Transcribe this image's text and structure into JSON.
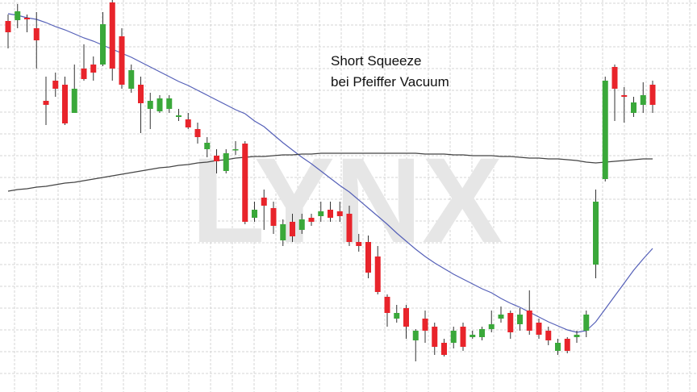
{
  "chart_data": {
    "type": "candlestick",
    "watermark": "LYNX",
    "annotation": [
      "Short Squeeze",
      "bei Pfeiffer Vacuum"
    ],
    "ylim": [
      0,
      486
    ],
    "grid": true,
    "up_color": "#3aa83a",
    "down_color": "#e8242b",
    "open": [
      460,
      461,
      464,
      451,
      361,
      386,
      381,
      346,
      401,
      406,
      406,
      483,
      441,
      376,
      381,
      351,
      348,
      351,
      341,
      338,
      326,
      301,
      293,
      274,
      301,
      308,
      216,
      241,
      228,
      188,
      211,
      201,
      216,
      218,
      226,
      224,
      221,
      186,
      186,
      168,
      118,
      91,
      104,
      64,
      91,
      81,
      61,
      61,
      81,
      68,
      68,
      78,
      91,
      98,
      84,
      101,
      86,
      76,
      51,
      66,
      68,
      76,
      158,
      264,
      403,
      368,
      346,
      356,
      381
    ],
    "high": [
      468,
      481,
      468,
      471,
      391,
      396,
      391,
      406,
      431,
      416,
      471,
      486,
      451,
      406,
      391,
      371,
      368,
      368,
      351,
      346,
      334,
      316,
      301,
      301,
      311,
      311,
      236,
      251,
      236,
      214,
      221,
      221,
      221,
      236,
      236,
      236,
      231,
      196,
      194,
      181,
      121,
      108,
      108,
      78,
      101,
      86,
      66,
      81,
      86,
      76,
      81,
      101,
      106,
      101,
      104,
      126,
      91,
      81,
      66,
      68,
      76,
      101,
      251,
      391,
      406,
      378,
      366,
      384,
      386
    ],
    "low": [
      426,
      451,
      446,
      401,
      331,
      366,
      331,
      346,
      386,
      386,
      404,
      386,
      376,
      371,
      321,
      326,
      346,
      346,
      336,
      326,
      308,
      291,
      271,
      271,
      294,
      208,
      211,
      201,
      196,
      181,
      186,
      196,
      206,
      211,
      211,
      211,
      181,
      174,
      141,
      121,
      81,
      86,
      66,
      38,
      61,
      46,
      44,
      54,
      51,
      66,
      64,
      74,
      86,
      66,
      76,
      71,
      66,
      58,
      46,
      48,
      61,
      68,
      141,
      261,
      336,
      334,
      341,
      346,
      346
    ],
    "close": [
      446,
      472,
      462,
      436,
      356,
      376,
      333,
      376,
      388,
      396,
      456,
      401,
      381,
      399,
      358,
      361,
      364,
      364,
      343,
      328,
      316,
      309,
      286,
      296,
      301,
      211,
      226,
      231,
      206,
      208,
      193,
      214,
      211,
      224,
      216,
      218,
      186,
      181,
      148,
      124,
      98,
      98,
      81,
      76,
      76,
      56,
      46,
      76,
      56,
      71,
      78,
      84,
      96,
      74,
      96,
      76,
      71,
      64,
      61,
      51,
      71,
      96,
      236,
      386,
      376,
      366,
      359,
      368,
      356
    ],
    "lines": [
      {
        "color": "#5560b8",
        "values": [
          469,
          467,
          464,
          462,
          458,
          453,
          449,
          444,
          439,
          435,
          430,
          425,
          420,
          415,
          409,
          403,
          397,
          391,
          385,
          380,
          374,
          368,
          362,
          356,
          350,
          345,
          336,
          329,
          319,
          309,
          300,
          291,
          283,
          274,
          265,
          256,
          248,
          238,
          228,
          218,
          208,
          197,
          187,
          177,
          168,
          160,
          153,
          146,
          140,
          134,
          128,
          123,
          116,
          110,
          105,
          99,
          93,
          87,
          82,
          77,
          74,
          76,
          87,
          103,
          119,
          135,
          151,
          165,
          178
        ]
      },
      {
        "color": "#444444",
        "values": [
          249,
          251,
          252,
          254,
          255,
          257,
          259,
          260,
          262,
          264,
          266,
          268,
          270,
          272,
          274,
          276,
          278,
          279,
          281,
          282,
          284,
          285,
          287,
          288,
          290,
          291,
          292,
          292,
          293,
          294,
          294,
          295,
          295,
          296,
          296,
          296,
          296,
          296,
          296,
          296,
          296,
          296,
          296,
          296,
          295,
          295,
          295,
          294,
          294,
          293,
          293,
          293,
          292,
          292,
          291,
          290,
          290,
          289,
          289,
          288,
          287,
          285,
          284,
          285,
          286,
          287,
          288,
          289,
          289
        ]
      }
    ]
  }
}
